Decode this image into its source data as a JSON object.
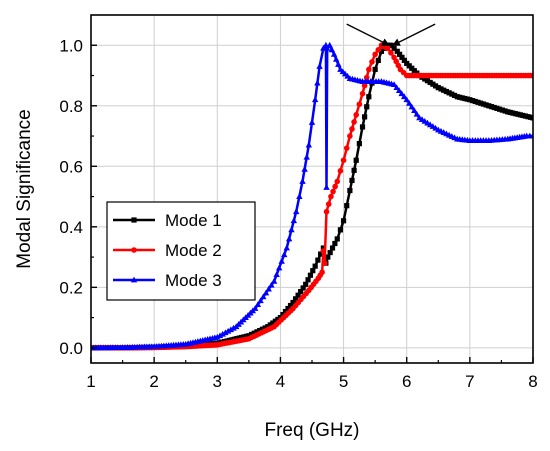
{
  "chart_data": {
    "type": "line",
    "title": "",
    "xlabel": "Freq (GHz)",
    "ylabel": "Modal Significance",
    "xlim": [
      1,
      8
    ],
    "ylim": [
      -0.05,
      1.1
    ],
    "xticks": [
      1,
      2,
      3,
      4,
      5,
      6,
      7,
      8
    ],
    "yticks": [
      0.0,
      0.2,
      0.4,
      0.6,
      0.8,
      1.0
    ],
    "xtick_labels": [
      "1",
      "2",
      "3",
      "4",
      "5",
      "6",
      "7",
      "8"
    ],
    "ytick_labels": [
      "0.0",
      "0.2",
      "0.4",
      "0.6",
      "0.8",
      "1.0"
    ],
    "grid": true,
    "legend_position": "center-left",
    "series": [
      {
        "name": "Mode 1",
        "color": "#000000",
        "marker": "square",
        "points": [
          [
            1.0,
            0.0
          ],
          [
            1.5,
            0.0
          ],
          [
            2.0,
            0.002
          ],
          [
            2.5,
            0.006
          ],
          [
            3.0,
            0.015
          ],
          [
            3.5,
            0.04
          ],
          [
            3.8,
            0.07
          ],
          [
            4.0,
            0.1
          ],
          [
            4.2,
            0.15
          ],
          [
            4.4,
            0.21
          ],
          [
            4.55,
            0.27
          ],
          [
            4.68,
            0.33
          ],
          [
            4.72,
            0.28
          ],
          [
            4.75,
            0.3
          ],
          [
            4.9,
            0.36
          ],
          [
            5.0,
            0.42
          ],
          [
            5.1,
            0.52
          ],
          [
            5.2,
            0.62
          ],
          [
            5.3,
            0.73
          ],
          [
            5.4,
            0.83
          ],
          [
            5.5,
            0.92
          ],
          [
            5.6,
            0.98
          ],
          [
            5.68,
            1.0
          ],
          [
            5.75,
            1.0
          ],
          [
            5.85,
            0.98
          ],
          [
            6.0,
            0.94
          ],
          [
            6.2,
            0.9
          ],
          [
            6.5,
            0.86
          ],
          [
            6.8,
            0.83
          ],
          [
            7.0,
            0.82
          ],
          [
            7.3,
            0.8
          ],
          [
            7.6,
            0.78
          ],
          [
            7.8,
            0.77
          ],
          [
            8.0,
            0.76
          ]
        ]
      },
      {
        "name": "Mode 2",
        "color": "#ff0000",
        "marker": "circle",
        "points": [
          [
            1.0,
            0.0
          ],
          [
            1.5,
            0.0
          ],
          [
            2.0,
            0.001
          ],
          [
            2.5,
            0.004
          ],
          [
            3.0,
            0.01
          ],
          [
            3.5,
            0.03
          ],
          [
            3.9,
            0.07
          ],
          [
            4.2,
            0.13
          ],
          [
            4.45,
            0.19
          ],
          [
            4.6,
            0.23
          ],
          [
            4.66,
            0.25
          ],
          [
            4.68,
            0.32
          ],
          [
            4.7,
            0.28
          ],
          [
            4.73,
            0.45
          ],
          [
            4.8,
            0.5
          ],
          [
            4.9,
            0.55
          ],
          [
            5.0,
            0.62
          ],
          [
            5.1,
            0.7
          ],
          [
            5.2,
            0.77
          ],
          [
            5.3,
            0.84
          ],
          [
            5.4,
            0.92
          ],
          [
            5.5,
            0.97
          ],
          [
            5.6,
            1.0
          ],
          [
            5.7,
            0.99
          ],
          [
            5.8,
            0.96
          ],
          [
            5.9,
            0.92
          ],
          [
            6.0,
            0.9
          ],
          [
            6.5,
            0.9
          ],
          [
            7.0,
            0.9
          ],
          [
            7.5,
            0.9
          ],
          [
            8.0,
            0.9
          ]
        ]
      },
      {
        "name": "Mode 3",
        "color": "#0000ff",
        "marker": "triangle",
        "points": [
          [
            1.0,
            0.0
          ],
          [
            1.5,
            0.001
          ],
          [
            2.0,
            0.004
          ],
          [
            2.5,
            0.012
          ],
          [
            3.0,
            0.035
          ],
          [
            3.3,
            0.07
          ],
          [
            3.6,
            0.13
          ],
          [
            3.9,
            0.22
          ],
          [
            4.1,
            0.33
          ],
          [
            4.25,
            0.45
          ],
          [
            4.35,
            0.55
          ],
          [
            4.45,
            0.67
          ],
          [
            4.55,
            0.82
          ],
          [
            4.62,
            0.93
          ],
          [
            4.68,
            0.99
          ],
          [
            4.72,
            1.0
          ],
          [
            4.73,
            0.53
          ],
          [
            4.74,
            0.99
          ],
          [
            4.78,
            1.0
          ],
          [
            4.85,
            0.97
          ],
          [
            4.95,
            0.92
          ],
          [
            5.1,
            0.89
          ],
          [
            5.3,
            0.88
          ],
          [
            5.6,
            0.88
          ],
          [
            5.8,
            0.87
          ],
          [
            6.0,
            0.82
          ],
          [
            6.2,
            0.76
          ],
          [
            6.5,
            0.72
          ],
          [
            6.8,
            0.69
          ],
          [
            7.0,
            0.685
          ],
          [
            7.3,
            0.685
          ],
          [
            7.6,
            0.69
          ],
          [
            7.9,
            0.7
          ],
          [
            8.0,
            0.7
          ]
        ]
      }
    ],
    "annotations": [
      {
        "type": "arrow",
        "from": [
          5.05,
          1.07
        ],
        "to": [
          5.72,
          1.0
        ]
      },
      {
        "type": "arrow",
        "from": [
          6.45,
          1.07
        ],
        "to": [
          5.78,
          1.0
        ]
      }
    ]
  }
}
